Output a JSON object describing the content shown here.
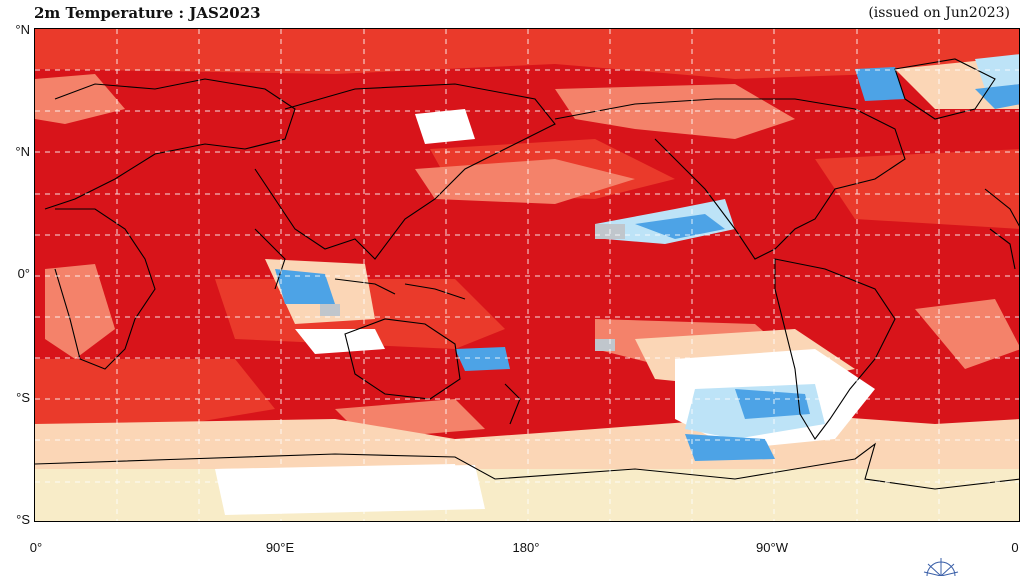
{
  "header": {
    "title": "2m Temperature : JAS2023",
    "issued": "(issued on Jun2023)"
  },
  "axes": {
    "lat_labels": [
      "°N",
      "°N",
      "0°",
      "°S",
      "°S"
    ],
    "lon_labels": [
      "0°",
      "90°E",
      "180°",
      "90°W",
      "0"
    ]
  },
  "colors": {
    "strong_warm": "#d8141a",
    "warm": "#ea3a2b",
    "moderate_warm": "#f4826a",
    "slight_warm": "#fbd6b6",
    "neutral_cream": "#f8ecc8",
    "white": "#ffffff",
    "light_cool": "#bde3f7",
    "cool": "#4da3e6",
    "gray_no_signal": "#c0c6cc",
    "coastline": "#000000",
    "grid": "#ffffff"
  },
  "legend_icon": "emblem-icon"
}
